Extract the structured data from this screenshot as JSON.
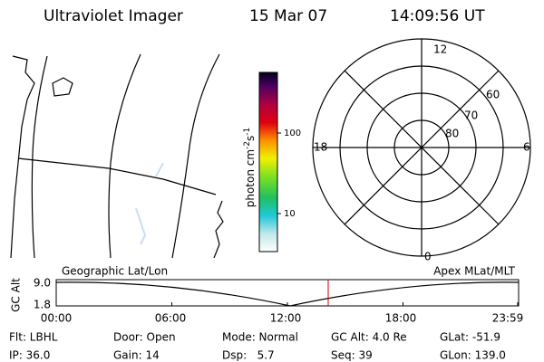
{
  "header": {
    "title": "Ultraviolet Imager",
    "date": "15 Mar 07",
    "time": "14:09:56 UT"
  },
  "colorbar": {
    "label": [
      "photon cm",
      "-2",
      "s",
      "-1"
    ],
    "ticks": [
      "100",
      "10"
    ]
  },
  "polar": {
    "mlt_labels": [
      "12",
      "6",
      "0",
      "18"
    ],
    "lat_labels": [
      "60",
      "70",
      "80"
    ]
  },
  "timeline": {
    "left_label": "Geographic Lat/Lon",
    "right_label": "Apex MLat/MLT",
    "axis_title": "GC Alt",
    "yticks": [
      "9.0",
      "1.8"
    ],
    "xticks": [
      "00:00",
      "06:00",
      "12:00",
      "18:00",
      "23:59"
    ]
  },
  "footer": {
    "rows": [
      [
        "Flt: LBHL",
        "Door: Open",
        "Mode: Normal",
        "GC Alt: 4.0 Re",
        "GLat: -51.9"
      ],
      [
        "IP: 36.0",
        "Gain: 14",
        "Dsp:   5.7",
        "Seq: 39",
        "GLon: 139.0"
      ]
    ]
  }
}
